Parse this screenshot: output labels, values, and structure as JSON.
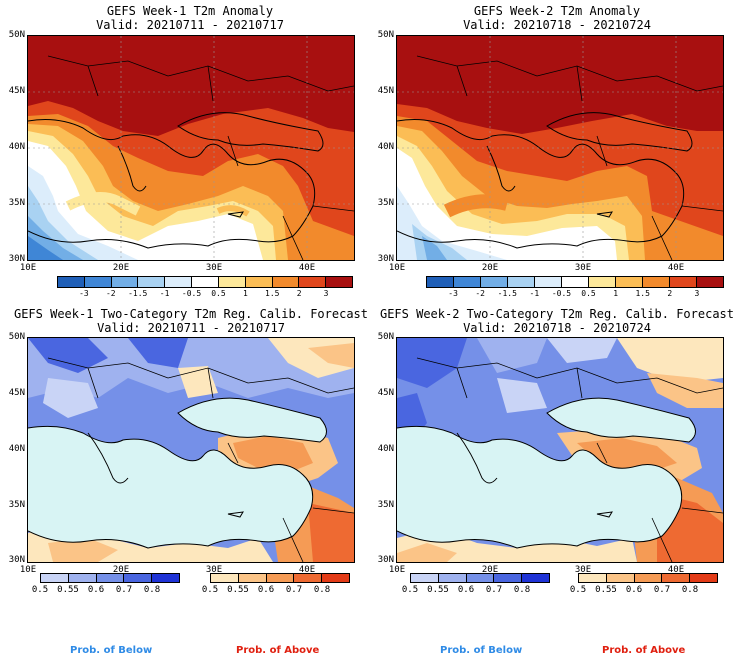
{
  "panels": [
    {
      "title": "GEFS Week-1 T2m Anomaly",
      "valid": "Valid: 20210711 - 20210717"
    },
    {
      "title": "GEFS Week-2 T2m Anomaly",
      "valid": "Valid: 20210718 - 20210724"
    },
    {
      "title": "GEFS Week-1 Two-Category T2m Reg. Calib. Forecast",
      "valid": "Valid: 20210711 - 20210717"
    },
    {
      "title": "GEFS Week-2 Two-Category T2m Reg. Calib. Forecast",
      "valid": "Valid: 20210718 - 20210724"
    }
  ],
  "axes": {
    "lat_labels": [
      "50N",
      "45N",
      "40N",
      "35N",
      "30N"
    ],
    "lon_labels": [
      "10E",
      "20E",
      "30E",
      "40E"
    ]
  },
  "anomaly_colorbar": {
    "labels": [
      "-3",
      "-2",
      "-1.5",
      "-1",
      "-0.5",
      "0.5",
      "1",
      "1.5",
      "2",
      "3"
    ],
    "colors": [
      "#1f5fb8",
      "#3f86d6",
      "#72aee6",
      "#a9d2f2",
      "#dcedfb",
      "#ffffff",
      "#fde89a",
      "#fbbd55",
      "#f28a2c",
      "#e0461c",
      "#a81010"
    ]
  },
  "prob_colorbar": {
    "below_labels": [
      "0.5",
      "0.55",
      "0.6",
      "0.7",
      "0.8"
    ],
    "above_labels": [
      "0.5",
      "0.55",
      "0.6",
      "0.7",
      "0.8"
    ],
    "below_colors": [
      "#c9d4f6",
      "#9fb2ef",
      "#7590e8",
      "#4a66e0",
      "#1f33d6"
    ],
    "above_colors": [
      "#fde7bd",
      "#fbc487",
      "#f59b55",
      "#ee6a32",
      "#e33b17"
    ]
  },
  "footer": {
    "below": "Prob. of Below",
    "above": "Prob. of Above"
  }
}
